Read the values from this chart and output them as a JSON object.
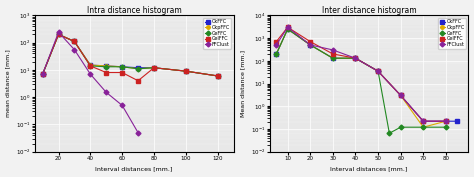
{
  "left_title": "Intra distance histogram",
  "right_title": "Inter distance histogram",
  "xlabel": "Interval distances [mm.]",
  "ylabel_left": "mean distance [mm.]",
  "ylabel_right": "Mean distance [mm.]",
  "legend_labels": [
    "CkFFC",
    "CkpFFC",
    "CeFFC",
    "CelFFC",
    "FFClust"
  ],
  "legend_colors": [
    "#2222cc",
    "#ddaa00",
    "#228822",
    "#cc2222",
    "#882299"
  ],
  "legend_markers": [
    "s",
    "o",
    "D",
    "s",
    "D"
  ],
  "intra": {
    "x_CkFFC": [
      10,
      20,
      30,
      40,
      50,
      60,
      70,
      80,
      100,
      120
    ],
    "y_CkFFC": [
      7,
      200,
      110,
      15,
      14,
      13,
      12,
      12,
      9,
      6
    ],
    "x_CkpFFC": [
      10,
      20,
      30,
      40,
      50,
      60,
      70,
      80,
      100,
      120
    ],
    "y_CkpFFC": [
      7,
      200,
      110,
      15,
      14,
      13,
      11,
      12,
      9,
      6
    ],
    "x_CeFFC": [
      10,
      20,
      30,
      40,
      50,
      60,
      70,
      80,
      100,
      120
    ],
    "y_CeFFC": [
      7,
      200,
      110,
      14,
      13,
      13,
      11,
      12,
      9,
      6
    ],
    "x_CelFFC": [
      10,
      20,
      30,
      40,
      50,
      60,
      70,
      80,
      100,
      120
    ],
    "y_CelFFC": [
      7,
      200,
      110,
      14,
      8,
      8,
      4,
      12,
      9,
      6
    ],
    "x_FFClust": [
      10,
      20,
      30,
      40,
      50,
      60,
      70
    ],
    "y_FFClust": [
      7,
      240,
      55,
      7,
      1.5,
      0.5,
      0.05
    ]
  },
  "inter": {
    "x_CkFFC": [
      5,
      10,
      20,
      30,
      40,
      50,
      60,
      70,
      80,
      85
    ],
    "y_CkFFC": [
      200,
      2500,
      500,
      130,
      130,
      35,
      3,
      0.22,
      0.22,
      0.22
    ],
    "x_CkpFFC": [
      5,
      10,
      20,
      30,
      40,
      50,
      60,
      70,
      80
    ],
    "y_CkpFFC": [
      200,
      2500,
      500,
      130,
      130,
      35,
      3,
      0.12,
      0.22
    ],
    "x_CeFFC": [
      5,
      10,
      20,
      30,
      40,
      50,
      55,
      60,
      70,
      80
    ],
    "y_CeFFC": [
      200,
      2500,
      500,
      130,
      130,
      35,
      0.065,
      0.12,
      0.12,
      0.12
    ],
    "x_CelFFC": [
      5,
      10,
      20,
      30,
      40,
      50,
      60,
      70,
      80
    ],
    "y_CelFFC": [
      700,
      3000,
      700,
      200,
      130,
      35,
      3,
      0.22,
      0.22
    ],
    "x_FFClust": [
      5,
      10,
      20,
      30,
      40,
      50,
      60,
      70,
      80
    ],
    "y_FFClust": [
      500,
      3000,
      500,
      300,
      130,
      35,
      3,
      0.22,
      0.22
    ]
  },
  "intra_ylim": [
    0.01,
    1000.0
  ],
  "inter_ylim": [
    0.01,
    10000.0
  ],
  "intra_xlim": [
    5,
    130
  ],
  "inter_xlim": [
    2,
    90
  ],
  "bg_color": "#e8e8e8",
  "fig_bg": "#f2f2f2"
}
